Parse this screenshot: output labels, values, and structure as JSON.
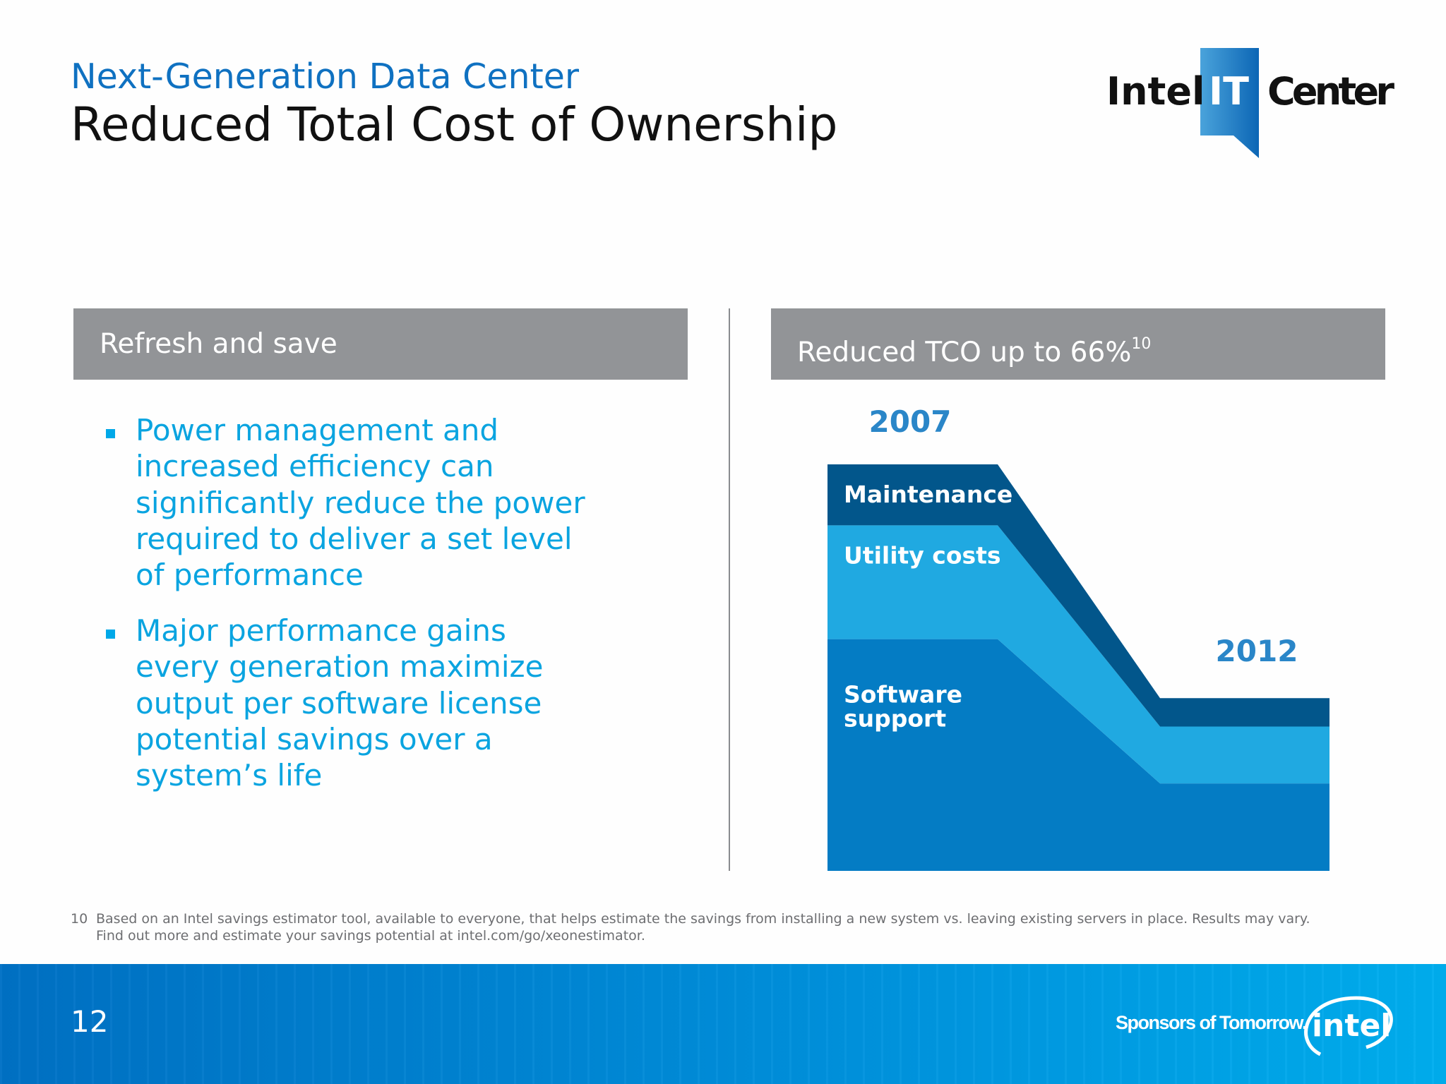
{
  "header": {
    "subtitle": "Next-Generation Data Center",
    "title": "Reduced Total Cost of Ownership",
    "logo_text": {
      "left": "Intel",
      "box": "IT",
      "right": "Center"
    }
  },
  "left_panel": {
    "heading": "Refresh and save",
    "bullets": [
      "Power management and increased efficiency can significantly reduce the power required to deliver a set level of performance",
      "Major performance gains every generation maximize output per software license potential savings over a system’s life"
    ]
  },
  "right_panel": {
    "heading": "Reduced TCO up to 66%",
    "heading_footnote_ref": "10"
  },
  "chart_data": {
    "type": "area",
    "stacked": true,
    "categories": [
      "2007",
      "2012"
    ],
    "series": [
      {
        "name": "Software support",
        "values": [
          57,
          21.5
        ],
        "color": "#047cc4"
      },
      {
        "name": "Utility costs",
        "values": [
          28,
          14
        ],
        "color": "#20a9e1"
      },
      {
        "name": "Maintenance",
        "values": [
          15,
          7
        ],
        "color": "#02568b"
      }
    ],
    "ylim": [
      0,
      100
    ],
    "axes_visible": false,
    "grid": false,
    "label_color": "#2a86c8"
  },
  "footnote": {
    "number": "10",
    "text": "Based on an Intel savings estimator tool, available to everyone, that helps estimate the savings from installing a new system vs. leaving existing servers in place. Results may vary. Find out more and estimate your savings potential at intel.com/go/xeonestimator."
  },
  "footer": {
    "page_number": "12",
    "tagline": "Sponsors of Tomorrow.",
    "brand": "intel",
    "colors": {
      "start": "#0071c5",
      "end": "#00aeef"
    }
  }
}
